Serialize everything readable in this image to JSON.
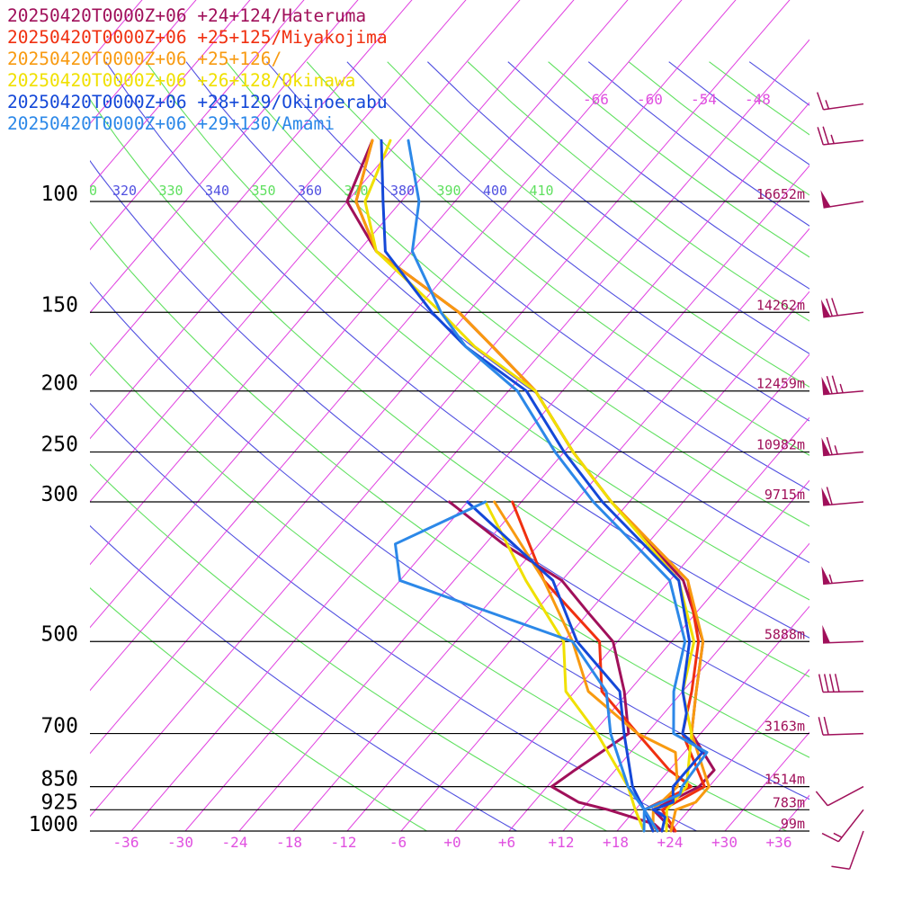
{
  "chart_data": {
    "type": "line",
    "diagram": "skew-T",
    "legend_placement": "top-left",
    "legend": [
      {
        "label": "20250420T0000Z+06 +24+124/Hateruma",
        "color": "#a0105a"
      },
      {
        "label": "20250420T0000Z+06 +25+125/Miyakojima",
        "color": "#f03010"
      },
      {
        "label": "20250420T0000Z+06 +25+126/",
        "color": "#f89a10"
      },
      {
        "label": "20250420T0000Z+06 +26+128/Okinawa",
        "color": "#f0e000"
      },
      {
        "label": "20250420T0000Z+06 +28+129/Okinoerabu",
        "color": "#1448d8"
      },
      {
        "label": "20250420T0000Z+06 +29+130/Amami",
        "color": "#2c88e8"
      }
    ],
    "pressure_levels": [
      100,
      150,
      200,
      250,
      300,
      500,
      700,
      850,
      925,
      1000
    ],
    "heights": [
      "16652m",
      "14262m",
      "12459m",
      "10982m",
      "9715m",
      "5888m",
      "3163m",
      "1514m",
      "783m",
      "99m"
    ],
    "temp_ticks": [
      "-36",
      "-30",
      "-24",
      "-18",
      "-12",
      "-6",
      "+0",
      "+6",
      "+12",
      "+18",
      "+24",
      "+30",
      "+36"
    ],
    "isotherm_labels": [
      "-66",
      "-60",
      "-54",
      "-48"
    ],
    "theta_labels": [
      "0",
      "320",
      "330",
      "340",
      "350",
      "360",
      "370",
      "380",
      "390",
      "400",
      "410"
    ],
    "theta_colors": [
      "#5fe05f",
      "#5050e0",
      "#5fe05f",
      "#5050e0",
      "#5fe05f",
      "#5050e0",
      "#5fe05f",
      "#5050e0",
      "#5fe05f",
      "#5050e0",
      "#5fe05f"
    ],
    "colors": {
      "isotherm": "#e040e0",
      "isobar": "#000000",
      "axis_text": "#e050e0",
      "height_text": "#a0105a",
      "barb": "#a0105a"
    },
    "series": [
      {
        "name": "20250420T0000Z+06 +24+124/Hateruma",
        "color": "#a0105a",
        "temperature": [
          [
            1000,
            24.3
          ],
          [
            925,
            20
          ],
          [
            850,
            22.9
          ],
          [
            800,
            23
          ],
          [
            700,
            17
          ],
          [
            600,
            13.5
          ],
          [
            500,
            9.5
          ],
          [
            400,
            1.5
          ],
          [
            300,
            -14
          ],
          [
            250,
            -23
          ],
          [
            200,
            -33
          ],
          [
            170,
            -42
          ],
          [
            150,
            -49
          ],
          [
            120,
            -64
          ],
          [
            100,
            -72
          ],
          [
            80,
            -75
          ]
        ],
        "dewpoint": [
          [
            1000,
            23
          ],
          [
            975,
            21.5
          ],
          [
            925,
            15
          ],
          [
            900,
            11
          ],
          [
            850,
            6.5
          ],
          [
            800,
            7.5
          ],
          [
            700,
            10
          ],
          [
            600,
            5.5
          ],
          [
            500,
            -0.5
          ],
          [
            450,
            -6
          ],
          [
            400,
            -12
          ],
          [
            350,
            -22
          ],
          [
            300,
            -32
          ]
        ]
      },
      {
        "name": "20250420T0000Z+06 +25+125/Miyakojima",
        "color": "#f03010",
        "temperature": [
          [
            1000,
            24.5
          ],
          [
            925,
            21
          ],
          [
            850,
            23.5
          ],
          [
            700,
            16
          ],
          [
            600,
            13
          ],
          [
            500,
            9
          ],
          [
            400,
            2
          ],
          [
            300,
            -14
          ],
          [
            250,
            -23
          ],
          [
            200,
            -33
          ],
          [
            170,
            -42
          ],
          [
            150,
            -49
          ],
          [
            120,
            -64
          ],
          [
            100,
            -71
          ],
          [
            80,
            -75
          ]
        ],
        "dewpoint": [
          [
            1000,
            22.5
          ],
          [
            925,
            19
          ],
          [
            850,
            22
          ],
          [
            800,
            18
          ],
          [
            700,
            11
          ],
          [
            600,
            3
          ],
          [
            500,
            -2
          ],
          [
            400,
            -14
          ],
          [
            300,
            -25
          ]
        ]
      },
      {
        "name": "20250420T0000Z+06 +25+126/",
        "color": "#f89a10",
        "temperature": [
          [
            1000,
            24
          ],
          [
            925,
            22.5
          ],
          [
            900,
            24
          ],
          [
            850,
            24
          ],
          [
            700,
            17
          ],
          [
            600,
            13.5
          ],
          [
            500,
            9.5
          ],
          [
            400,
            2
          ],
          [
            300,
            -14
          ],
          [
            250,
            -23
          ],
          [
            200,
            -33
          ],
          [
            170,
            -42
          ],
          [
            150,
            -49
          ],
          [
            120,
            -64
          ],
          [
            100,
            -71
          ],
          [
            80,
            -75
          ]
        ],
        "dewpoint": [
          [
            1000,
            22
          ],
          [
            925,
            20
          ],
          [
            850,
            20.5
          ],
          [
            750,
            17
          ],
          [
            700,
            11
          ],
          [
            600,
            1.5
          ],
          [
            500,
            -5
          ],
          [
            400,
            -14
          ],
          [
            300,
            -27
          ]
        ]
      },
      {
        "name": "20250420T0000Z+06 +26+128/Okinawa",
        "color": "#f0e000",
        "temperature": [
          [
            1000,
            23.5
          ],
          [
            925,
            21.5
          ],
          [
            850,
            21.5
          ],
          [
            700,
            17
          ],
          [
            600,
            12
          ],
          [
            500,
            8.5
          ],
          [
            400,
            1
          ],
          [
            300,
            -14
          ],
          [
            250,
            -23
          ],
          [
            200,
            -33
          ],
          [
            170,
            -44
          ],
          [
            150,
            -51
          ],
          [
            120,
            -64
          ],
          [
            100,
            -70
          ],
          [
            80,
            -73
          ]
        ],
        "dewpoint": [
          [
            1000,
            21
          ],
          [
            925,
            18
          ],
          [
            850,
            15
          ],
          [
            700,
            6.5
          ],
          [
            600,
            -1
          ],
          [
            500,
            -6
          ],
          [
            400,
            -16
          ],
          [
            300,
            -28
          ]
        ]
      },
      {
        "name": "20250420T0000Z+06 +28+129/Okinoerabu",
        "color": "#1448d8",
        "temperature": [
          [
            1000,
            23
          ],
          [
            950,
            22
          ],
          [
            925,
            20
          ],
          [
            900,
            21.5
          ],
          [
            850,
            20
          ],
          [
            750,
            20
          ],
          [
            700,
            16
          ],
          [
            650,
            14.5
          ],
          [
            600,
            12
          ],
          [
            500,
            8
          ],
          [
            400,
            1
          ],
          [
            300,
            -15
          ],
          [
            250,
            -24
          ],
          [
            200,
            -34
          ],
          [
            170,
            -45
          ],
          [
            150,
            -52
          ],
          [
            120,
            -63
          ],
          [
            100,
            -68
          ],
          [
            80,
            -74
          ]
        ],
        "dewpoint": [
          [
            1000,
            22
          ],
          [
            925,
            19
          ],
          [
            850,
            15.5
          ],
          [
            700,
            9.5
          ],
          [
            600,
            5
          ],
          [
            500,
            -4.5
          ],
          [
            400,
            -13
          ],
          [
            300,
            -30
          ]
        ]
      },
      {
        "name": "20250420T0000Z+06 +29+130/Amami",
        "color": "#2c88e8",
        "temperature": [
          [
            1000,
            22.5
          ],
          [
            925,
            19
          ],
          [
            875,
            21.5
          ],
          [
            850,
            21
          ],
          [
            750,
            20.5
          ],
          [
            700,
            15
          ],
          [
            600,
            11
          ],
          [
            500,
            7.5
          ],
          [
            400,
            0
          ],
          [
            300,
            -16
          ],
          [
            250,
            -25
          ],
          [
            200,
            -35
          ],
          [
            170,
            -45
          ],
          [
            150,
            -51
          ],
          [
            120,
            -60
          ],
          [
            100,
            -64
          ],
          [
            80,
            -71
          ]
        ],
        "dewpoint": [
          [
            1000,
            21
          ],
          [
            925,
            19
          ],
          [
            850,
            15
          ],
          [
            700,
            8
          ],
          [
            600,
            3.5
          ],
          [
            500,
            -5
          ],
          [
            400,
            -30
          ],
          [
            350,
            -34
          ],
          [
            300,
            -28
          ]
        ]
      }
    ],
    "wind_barbs": [
      {
        "p": 70,
        "dir": 262,
        "kt": 15
      },
      {
        "p": 80,
        "dir": 264,
        "kt": 25
      },
      {
        "p": 100,
        "dir": 261,
        "kt": 50
      },
      {
        "p": 150,
        "dir": 263,
        "kt": 70
      },
      {
        "p": 200,
        "dir": 265,
        "kt": 75
      },
      {
        "p": 250,
        "dir": 265,
        "kt": 65
      },
      {
        "p": 300,
        "dir": 265,
        "kt": 60
      },
      {
        "p": 400,
        "dir": 265,
        "kt": 55
      },
      {
        "p": 500,
        "dir": 268,
        "kt": 50
      },
      {
        "p": 600,
        "dir": 269,
        "kt": 40
      },
      {
        "p": 700,
        "dir": 268,
        "kt": 20
      },
      {
        "p": 850,
        "dir": 242,
        "kt": 10
      },
      {
        "p": 925,
        "dir": 218,
        "kt": 15
      },
      {
        "p": 1000,
        "dir": 200,
        "kt": 10
      }
    ]
  }
}
